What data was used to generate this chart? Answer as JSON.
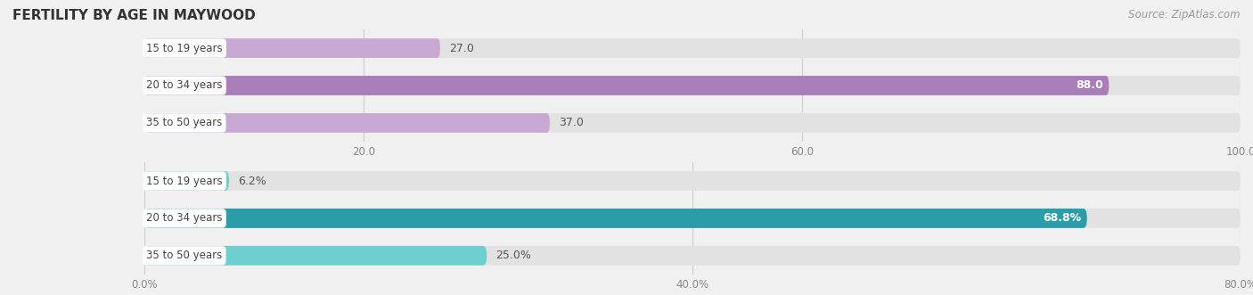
{
  "title": "FERTILITY BY AGE IN MAYWOOD",
  "source": "Source: ZipAtlas.com",
  "top_bars": {
    "labels": [
      "15 to 19 years",
      "20 to 34 years",
      "35 to 50 years"
    ],
    "values": [
      27.0,
      88.0,
      37.0
    ],
    "color_light": "#c9a8d4",
    "color_dark": "#a87db8",
    "xmin": 0,
    "xmax": 100,
    "xticks": [
      20.0,
      60.0,
      100.0
    ],
    "xtick_labels": [
      "20.0",
      "60.0",
      "100.0"
    ],
    "bar_label_suffix": "",
    "value_inside": [
      false,
      true,
      false
    ]
  },
  "bottom_bars": {
    "labels": [
      "15 to 19 years",
      "20 to 34 years",
      "35 to 50 years"
    ],
    "values": [
      6.2,
      68.8,
      25.0
    ],
    "color_light": "#6ecfcf",
    "color_dark": "#2a9da8",
    "xmin": 0,
    "xmax": 80,
    "xticks": [
      0.0,
      40.0,
      80.0
    ],
    "xtick_labels": [
      "0.0%",
      "40.0%",
      "80.0%"
    ],
    "bar_label_suffix": "%",
    "value_inside": [
      false,
      true,
      false
    ]
  },
  "bg_color": "#f0f0f0",
  "bar_bg_color": "#e2e2e2",
  "bar_height": 0.52,
  "label_box_color": "#ffffff",
  "label_text_color": "#444444",
  "title_color": "#333333",
  "source_color": "#999999",
  "value_label_color_outside": "#555555",
  "value_label_color_inside": "#ffffff"
}
